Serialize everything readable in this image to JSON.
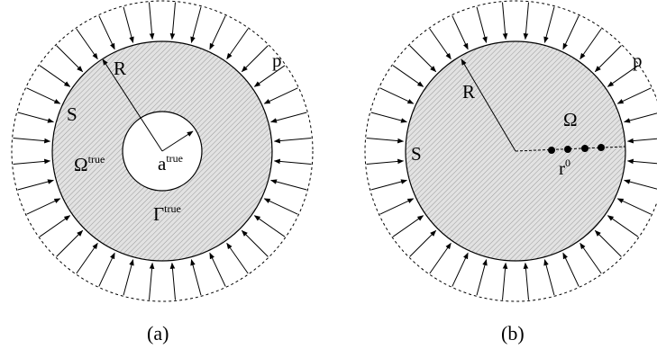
{
  "figure_a": {
    "label_R": "R",
    "label_p": "p",
    "label_S": "S",
    "label_omega": "Ω",
    "omega_sup": "true",
    "label_a": "a",
    "a_sup": "true",
    "label_gamma": "Γ",
    "gamma_sup": "true",
    "caption": "(a)"
  },
  "figure_b": {
    "label_R": "R",
    "label_p": "p",
    "label_S": "S",
    "label_omega": "Ω",
    "label_r": "r",
    "r_sup": "0",
    "caption": "(b)"
  },
  "colors": {
    "hatch": "#8a8a8a",
    "fill": "#e4e4e4",
    "stroke": "#000000"
  }
}
